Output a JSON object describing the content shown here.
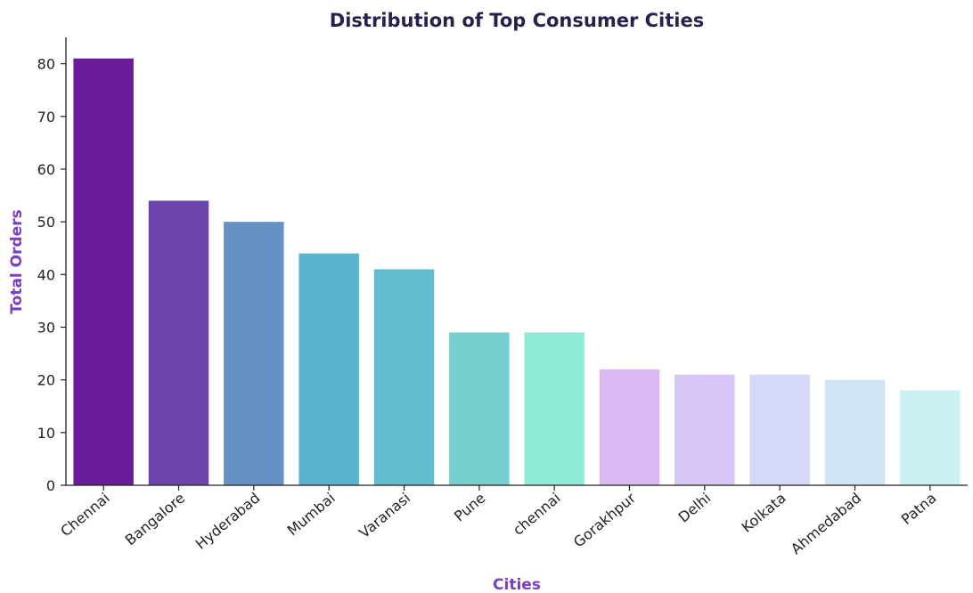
{
  "chart_data": {
    "type": "bar",
    "title": "Distribution of Top Consumer Cities",
    "xlabel": "Cities",
    "ylabel": "Total Orders",
    "categories": [
      "Chennai",
      "Bangalore",
      "Hyderabad",
      "Mumbai",
      "Varanasi",
      "Pune",
      "chennai",
      "Gorakhpur",
      "Delhi",
      "Kolkata",
      "Ahmedabad",
      "Patna"
    ],
    "values": [
      81,
      54,
      50,
      44,
      41,
      29,
      29,
      22,
      21,
      21,
      20,
      18
    ],
    "colors": [
      "#6a1b9a",
      "#6c44ae",
      "#6592c5",
      "#5ab3cf",
      "#62bece",
      "#75cfcf",
      "#8eecd6",
      "#dcb8f2",
      "#d6c6f5",
      "#d6d8f7",
      "#d1e4f6",
      "#caf2f2"
    ],
    "ylim": [
      0,
      85
    ],
    "yticks": [
      0,
      10,
      20,
      30,
      40,
      50,
      60,
      70,
      80
    ],
    "grid": false,
    "legend": "none"
  }
}
